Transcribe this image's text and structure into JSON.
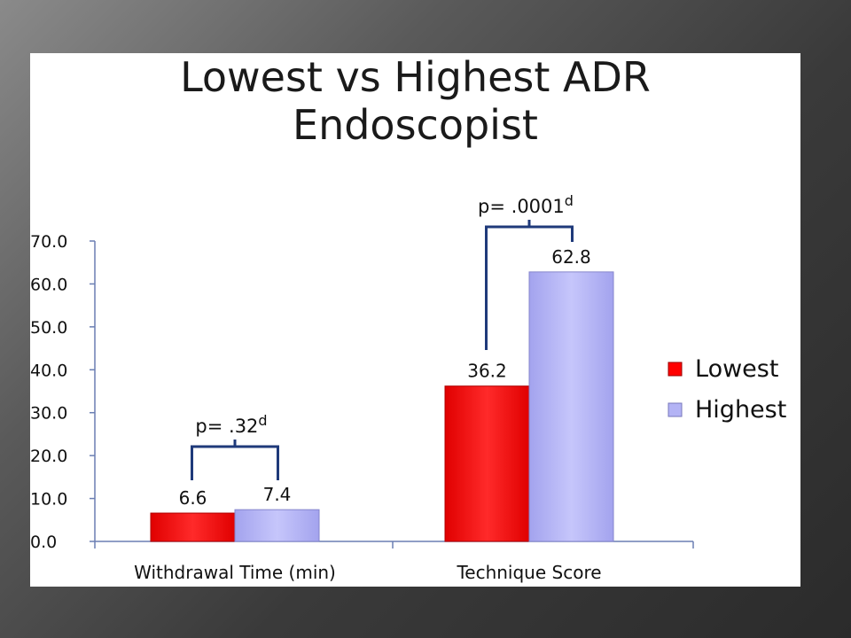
{
  "slide": {
    "title_line1": "Lowest vs Highest ADR",
    "title_line2": "Endoscopist"
  },
  "chart_data": {
    "type": "bar",
    "title": "Lowest vs Highest ADR Endoscopist",
    "categories": [
      "Withdrawal Time (min)",
      "Technique Score"
    ],
    "series": [
      {
        "name": "Lowest",
        "values": [
          6.6,
          36.2
        ],
        "color": "#ff0000"
      },
      {
        "name": "Highest",
        "values": [
          7.4,
          62.8
        ],
        "color": "#b3b3f5"
      }
    ],
    "data_labels": [
      [
        "6.6",
        "36.2"
      ],
      [
        "7.4",
        "62.8"
      ]
    ],
    "ylim": [
      0,
      70
    ],
    "yticks": [
      "0.0",
      "10.0",
      "20.0",
      "30.0",
      "40.0",
      "50.0",
      "60.0",
      "70.0"
    ],
    "ytick_values": [
      0,
      10,
      20,
      30,
      40,
      50,
      60,
      70
    ],
    "grid": false,
    "legend_position": "right",
    "annotations": [
      {
        "text": "p= .32",
        "superscript": "d",
        "category": 0
      },
      {
        "text": "p= .0001",
        "superscript": "d",
        "category": 1
      }
    ],
    "bracket_color": "#1f3a7a"
  }
}
